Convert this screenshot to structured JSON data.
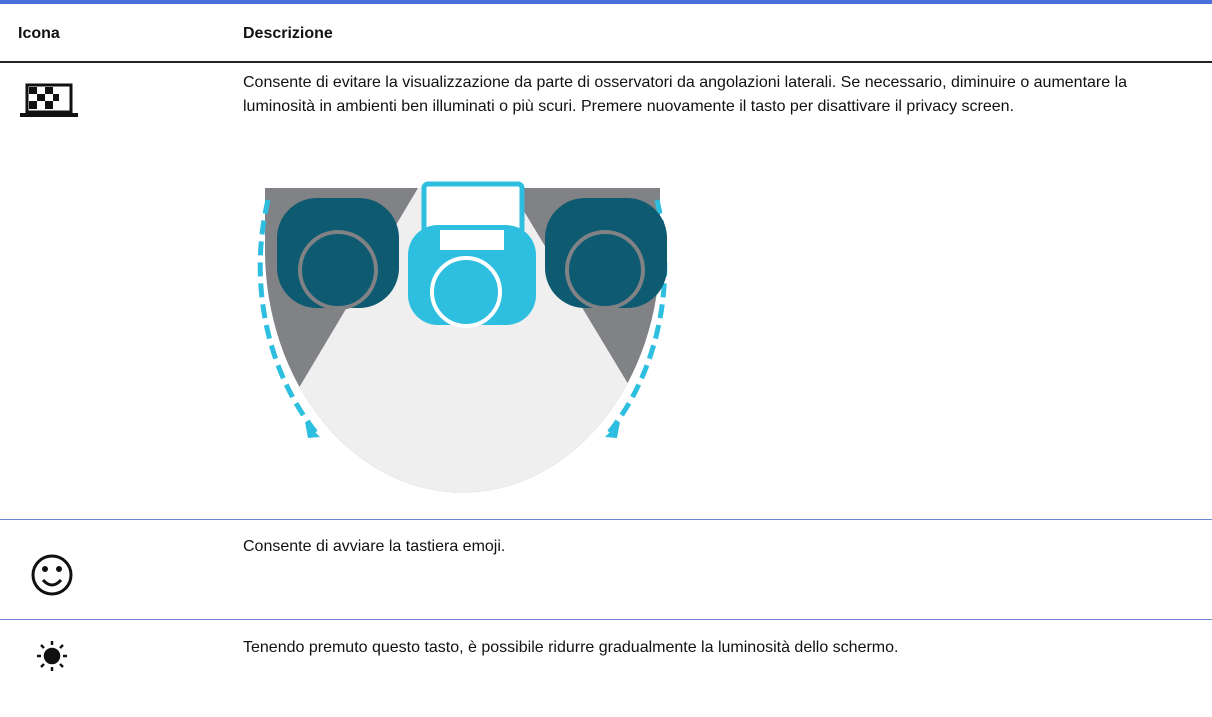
{
  "table": {
    "header": [
      "Icona",
      "Descrizione"
    ],
    "rows": [
      "Consente di evitare la visualizzazione da parte di osservatori da angolazioni laterali. Se necessario, diminuire o aumentare la luminosità in ambienti ben illuminati o più scuri. Premere nuovamente il tasto per disattivare il privacy screen.",
      "Consente di avviare la tastiera emoji.",
      "Tenendo premuto questo tasto, è possibile ridurre gradualmente la luminosità dello schermo."
    ]
  }
}
